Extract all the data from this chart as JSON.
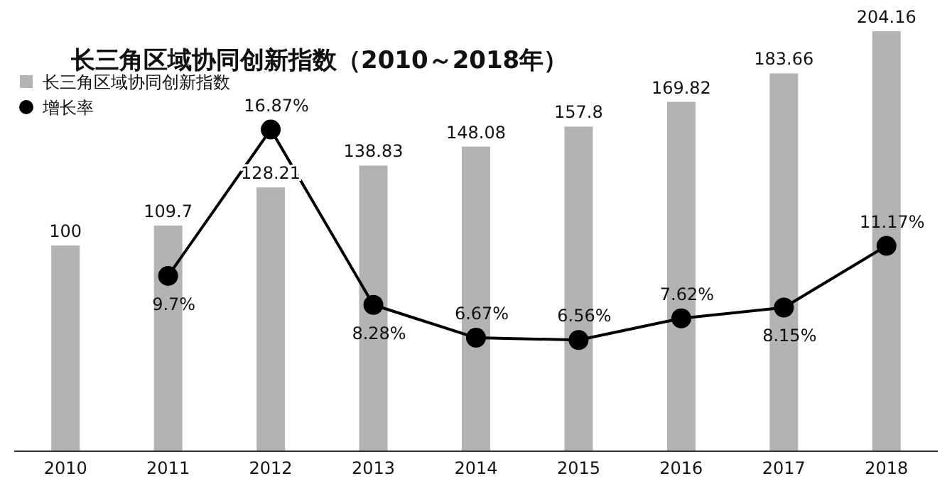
{
  "chart_data": {
    "type": "bar",
    "title": "长三角区域协同创新指数（2010～2018年）",
    "categories": [
      "2010",
      "2011",
      "2012",
      "2013",
      "2014",
      "2015",
      "2016",
      "2017",
      "2018"
    ],
    "grid": false,
    "legend": "top left",
    "marker": "circle",
    "series": [
      {
        "name": "长三角区域协同创新指数",
        "color": "#b3b3b3",
        "values": [
          100,
          109.7,
          128.21,
          138.83,
          148.08,
          157.8,
          169.82,
          183.66,
          204.16
        ],
        "value_labels": [
          "100",
          "109.7",
          "128.21",
          "138.83",
          "148.08",
          "157.8",
          "169.82",
          "183.66",
          "204.16"
        ]
      },
      {
        "name": "增长率",
        "type": "line",
        "axis": "y2",
        "color": "#000000",
        "values": [
          null,
          9.7,
          16.87,
          8.28,
          6.67,
          6.56,
          7.62,
          8.15,
          11.17
        ],
        "value_labels": [
          null,
          "9.7%",
          "16.87%",
          "8.28%",
          "6.67%",
          "6.56%",
          "7.62%",
          "8.15%",
          "11.17%"
        ]
      }
    ]
  }
}
